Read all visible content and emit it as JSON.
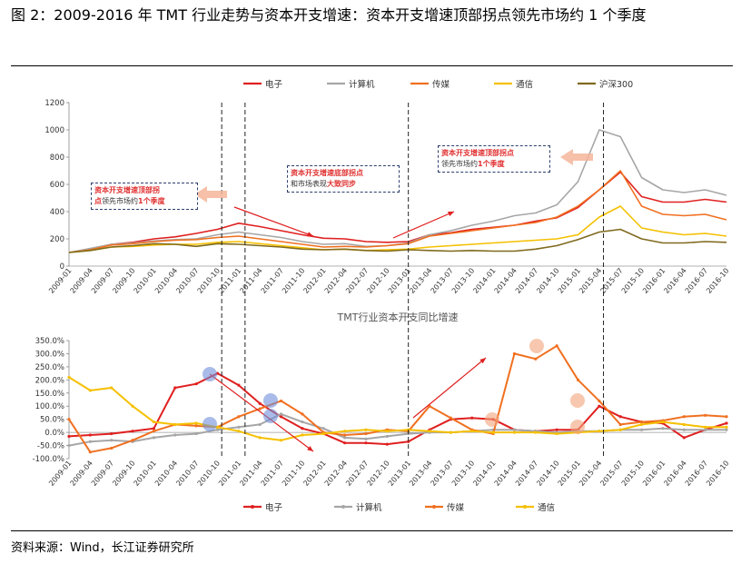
{
  "title": "图 2：2009-2016 年 TMT 行业走势与资本开支增速：资本开支增速顶部拐点领先市场约 1 个季度",
  "source": "资料来源：Wind，长江证券研究所",
  "annotations": {
    "a1_red": "资本开支增速顶部拐",
    "a1_red2": "点",
    "a1_black": "领先市场约",
    "a1_red3": "1个季度",
    "a2_red": "资本开支增速底部拐点",
    "a2_black": "和市场表现",
    "a2_red2": "大致同步",
    "a3_red": "资本开支增速顶部拐点",
    "a3_black": "领先市场约",
    "a3_red2": "1个季度"
  },
  "chart_data": [
    {
      "type": "line",
      "title": "",
      "ylim": [
        0,
        1200
      ],
      "yticks": [
        "0",
        "200",
        "400",
        "600",
        "800",
        "1000",
        "1200"
      ],
      "x_ticks": [
        "2009-01",
        "2009-04",
        "2009-07",
        "2009-10",
        "2010-01",
        "2010-04",
        "2010-07",
        "2010-10",
        "2011-01",
        "2011-04",
        "2011-07",
        "2011-10",
        "2012-01",
        "2012-04",
        "2012-07",
        "2012-10",
        "2013-01",
        "2013-04",
        "2013-07",
        "2013-10",
        "2014-01",
        "2014-04",
        "2014-07",
        "2014-10",
        "2015-01",
        "2015-04",
        "2015-07",
        "2015-10",
        "2016-01",
        "2016-04",
        "2016-07",
        "2016-10"
      ],
      "legend": [
        "电子",
        "计算机",
        "传媒",
        "通信",
        "沪深300"
      ],
      "colors": [
        "#e02020",
        "#a6a6a6",
        "#f07020",
        "#f5c000",
        "#7f6a1e"
      ],
      "series": [
        {
          "name": "电子",
          "values": [
            100,
            125,
            160,
            175,
            200,
            215,
            240,
            270,
            315,
            290,
            260,
            230,
            205,
            200,
            180,
            175,
            180,
            230,
            245,
            270,
            285,
            300,
            330,
            355,
            430,
            560,
            690,
            510,
            470,
            470,
            490,
            470
          ]
        },
        {
          "name": "计算机",
          "values": [
            100,
            130,
            160,
            170,
            185,
            195,
            200,
            230,
            250,
            230,
            210,
            180,
            160,
            165,
            145,
            150,
            170,
            230,
            260,
            300,
            330,
            370,
            390,
            450,
            620,
            1000,
            950,
            650,
            560,
            540,
            560,
            520
          ]
        },
        {
          "name": "传媒",
          "values": [
            100,
            120,
            155,
            165,
            180,
            190,
            195,
            210,
            220,
            200,
            180,
            160,
            140,
            145,
            140,
            150,
            165,
            220,
            240,
            260,
            280,
            300,
            320,
            360,
            440,
            560,
            700,
            440,
            380,
            370,
            380,
            340
          ]
        },
        {
          "name": "通信",
          "values": [
            100,
            115,
            140,
            145,
            155,
            160,
            160,
            175,
            180,
            165,
            150,
            135,
            120,
            125,
            115,
            120,
            125,
            140,
            150,
            160,
            170,
            180,
            190,
            200,
            230,
            360,
            440,
            280,
            250,
            230,
            240,
            220
          ]
        },
        {
          "name": "沪深300",
          "values": [
            100,
            115,
            140,
            150,
            165,
            160,
            145,
            165,
            160,
            150,
            140,
            125,
            120,
            125,
            115,
            110,
            120,
            115,
            110,
            115,
            110,
            110,
            125,
            150,
            195,
            250,
            270,
            200,
            170,
            170,
            180,
            175
          ]
        }
      ]
    },
    {
      "type": "line",
      "title": "TMT行业资本开支同比增速",
      "ylim": [
        -100,
        350
      ],
      "yticks": [
        "-100.0%",
        "-50.0%",
        "0.0%",
        "50.0%",
        "100.0%",
        "150.0%",
        "200.0%",
        "250.0%",
        "300.0%",
        "350.0%"
      ],
      "x_ticks": [
        "2009-01",
        "2009-04",
        "2009-07",
        "2009-10",
        "2010-01",
        "2010-04",
        "2010-07",
        "2010-10",
        "2011-01",
        "2011-04",
        "2011-07",
        "2011-10",
        "2012-01",
        "2012-04",
        "2012-07",
        "2012-10",
        "2013-01",
        "2013-04",
        "2013-07",
        "2013-10",
        "2014-01",
        "2014-04",
        "2014-07",
        "2014-10",
        "2015-01",
        "2015-04",
        "2015-07",
        "2015-10",
        "2016-01",
        "2016-04",
        "2016-07",
        "2016-10"
      ],
      "legend": [
        "电子",
        "计算机",
        "传媒",
        "通信"
      ],
      "colors": [
        "#e02020",
        "#a6a6a6",
        "#f07020",
        "#f5c000"
      ],
      "series": [
        {
          "name": "电子",
          "values": [
            -15,
            -10,
            -5,
            5,
            15,
            170,
            185,
            225,
            180,
            110,
            60,
            15,
            -5,
            -40,
            -40,
            -45,
            -35,
            10,
            50,
            55,
            50,
            10,
            5,
            10,
            10,
            100,
            60,
            40,
            35,
            -20,
            10,
            35
          ]
        },
        {
          "name": "计算机",
          "values": [
            -50,
            -35,
            -30,
            -35,
            -20,
            -10,
            -5,
            10,
            20,
            30,
            70,
            40,
            15,
            -20,
            -25,
            -15,
            -5,
            0,
            0,
            5,
            10,
            10,
            5,
            0,
            5,
            5,
            10,
            10,
            15,
            10,
            10,
            10
          ]
        },
        {
          "name": "传媒",
          "values": [
            50,
            -75,
            -60,
            -30,
            5,
            30,
            25,
            20,
            60,
            90,
            120,
            70,
            0,
            -10,
            -5,
            10,
            5,
            100,
            55,
            10,
            -5,
            300,
            280,
            330,
            200,
            120,
            30,
            40,
            45,
            60,
            65,
            60
          ]
        },
        {
          "name": "通信",
          "values": [
            210,
            160,
            170,
            100,
            40,
            30,
            35,
            20,
            5,
            -20,
            -30,
            -10,
            -5,
            5,
            10,
            5,
            10,
            5,
            0,
            5,
            0,
            0,
            0,
            -5,
            0,
            5,
            10,
            30,
            40,
            30,
            20,
            20
          ]
        }
      ]
    }
  ]
}
